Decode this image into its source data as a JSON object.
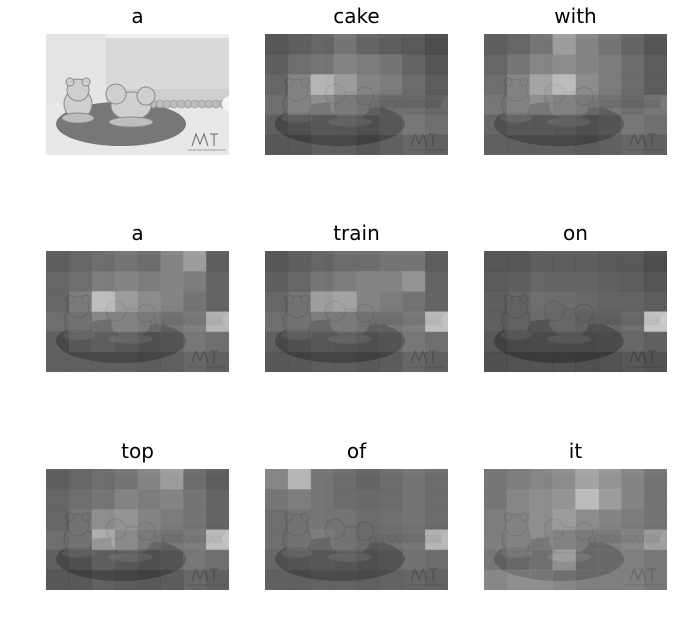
{
  "figure": {
    "panels": [
      {
        "word": "a",
        "kind": "original"
      },
      {
        "word": "cake",
        "kind": "attention"
      },
      {
        "word": "with",
        "kind": "attention"
      },
      {
        "word": "a",
        "kind": "attention"
      },
      {
        "word": "train",
        "kind": "attention"
      },
      {
        "word": "on",
        "kind": "attention"
      },
      {
        "word": "top",
        "kind": "attention"
      },
      {
        "word": "of",
        "kind": "attention"
      },
      {
        "word": "it",
        "kind": "attention"
      }
    ],
    "attention_grids": [
      null,
      [
        [
          0.25,
          0.3,
          0.35,
          0.45,
          0.35,
          0.3,
          0.28,
          0.2
        ],
        [
          0.3,
          0.4,
          0.45,
          0.55,
          0.5,
          0.45,
          0.35,
          0.25
        ],
        [
          0.35,
          0.55,
          0.85,
          0.7,
          0.55,
          0.5,
          0.4,
          0.3
        ],
        [
          0.4,
          0.55,
          0.6,
          0.5,
          0.45,
          0.4,
          0.4,
          0.35
        ],
        [
          0.3,
          0.35,
          0.4,
          0.38,
          0.35,
          0.4,
          0.45,
          0.4
        ],
        [
          0.25,
          0.25,
          0.3,
          0.3,
          0.25,
          0.3,
          0.35,
          0.3
        ]
      ],
      [
        [
          0.3,
          0.35,
          0.45,
          0.7,
          0.55,
          0.45,
          0.35,
          0.25
        ],
        [
          0.35,
          0.45,
          0.55,
          0.6,
          0.55,
          0.5,
          0.4,
          0.3
        ],
        [
          0.4,
          0.55,
          0.75,
          0.9,
          0.6,
          0.5,
          0.4,
          0.3
        ],
        [
          0.45,
          0.55,
          0.6,
          0.55,
          0.5,
          0.45,
          0.4,
          0.45
        ],
        [
          0.35,
          0.4,
          0.4,
          0.38,
          0.35,
          0.38,
          0.45,
          0.4
        ],
        [
          0.3,
          0.3,
          0.3,
          0.3,
          0.28,
          0.3,
          0.35,
          0.3
        ]
      ],
      [
        [
          0.3,
          0.35,
          0.4,
          0.45,
          0.4,
          0.55,
          0.7,
          0.3
        ],
        [
          0.35,
          0.4,
          0.5,
          0.55,
          0.5,
          0.55,
          0.5,
          0.35
        ],
        [
          0.35,
          0.5,
          0.9,
          0.7,
          0.6,
          0.55,
          0.45,
          0.35
        ],
        [
          0.4,
          0.45,
          0.55,
          0.55,
          0.5,
          0.45,
          0.5,
          0.85
        ],
        [
          0.3,
          0.4,
          0.45,
          0.4,
          0.35,
          0.38,
          0.45,
          0.4
        ],
        [
          0.3,
          0.3,
          0.3,
          0.3,
          0.28,
          0.3,
          0.35,
          0.3
        ]
      ],
      [
        [
          0.25,
          0.3,
          0.35,
          0.4,
          0.4,
          0.45,
          0.45,
          0.3
        ],
        [
          0.3,
          0.35,
          0.45,
          0.5,
          0.55,
          0.55,
          0.65,
          0.35
        ],
        [
          0.35,
          0.45,
          0.7,
          0.75,
          0.55,
          0.5,
          0.45,
          0.35
        ],
        [
          0.4,
          0.45,
          0.5,
          0.5,
          0.45,
          0.45,
          0.5,
          0.9
        ],
        [
          0.3,
          0.35,
          0.4,
          0.38,
          0.35,
          0.38,
          0.45,
          0.4
        ],
        [
          0.25,
          0.25,
          0.28,
          0.28,
          0.25,
          0.28,
          0.35,
          0.3
        ]
      ],
      [
        [
          0.25,
          0.25,
          0.3,
          0.3,
          0.3,
          0.28,
          0.28,
          0.2
        ],
        [
          0.28,
          0.3,
          0.35,
          0.35,
          0.35,
          0.32,
          0.3,
          0.25
        ],
        [
          0.3,
          0.35,
          0.4,
          0.4,
          0.38,
          0.35,
          0.35,
          0.3
        ],
        [
          0.3,
          0.35,
          0.38,
          0.38,
          0.35,
          0.35,
          0.4,
          0.95
        ],
        [
          0.25,
          0.3,
          0.32,
          0.3,
          0.3,
          0.32,
          0.35,
          0.3
        ],
        [
          0.2,
          0.22,
          0.22,
          0.22,
          0.2,
          0.22,
          0.25,
          0.22
        ]
      ],
      [
        [
          0.3,
          0.35,
          0.4,
          0.45,
          0.55,
          0.7,
          0.4,
          0.3
        ],
        [
          0.35,
          0.4,
          0.45,
          0.55,
          0.5,
          0.55,
          0.45,
          0.35
        ],
        [
          0.35,
          0.45,
          0.6,
          0.65,
          0.55,
          0.5,
          0.45,
          0.35
        ],
        [
          0.4,
          0.45,
          0.8,
          0.6,
          0.5,
          0.45,
          0.5,
          0.9
        ],
        [
          0.3,
          0.35,
          0.45,
          0.4,
          0.35,
          0.38,
          0.45,
          0.4
        ],
        [
          0.25,
          0.25,
          0.3,
          0.28,
          0.25,
          0.28,
          0.35,
          0.3
        ]
      ],
      [
        [
          0.55,
          0.85,
          0.45,
          0.4,
          0.35,
          0.4,
          0.45,
          0.4
        ],
        [
          0.45,
          0.5,
          0.45,
          0.4,
          0.38,
          0.4,
          0.45,
          0.4
        ],
        [
          0.4,
          0.45,
          0.45,
          0.45,
          0.4,
          0.42,
          0.45,
          0.4
        ],
        [
          0.4,
          0.45,
          0.5,
          0.45,
          0.4,
          0.42,
          0.45,
          0.85
        ],
        [
          0.35,
          0.38,
          0.4,
          0.38,
          0.35,
          0.38,
          0.42,
          0.38
        ],
        [
          0.3,
          0.3,
          0.32,
          0.32,
          0.3,
          0.32,
          0.35,
          0.32
        ]
      ],
      [
        [
          0.45,
          0.5,
          0.55,
          0.6,
          0.75,
          0.65,
          0.55,
          0.45
        ],
        [
          0.45,
          0.55,
          0.6,
          0.65,
          0.9,
          0.7,
          0.55,
          0.45
        ],
        [
          0.5,
          0.55,
          0.6,
          0.7,
          0.6,
          0.55,
          0.5,
          0.45
        ],
        [
          0.5,
          0.55,
          0.6,
          0.55,
          0.5,
          0.5,
          0.55,
          0.7
        ],
        [
          0.45,
          0.5,
          0.55,
          0.75,
          0.5,
          0.5,
          0.5,
          0.45
        ],
        [
          0.55,
          0.6,
          0.6,
          0.55,
          0.5,
          0.5,
          0.5,
          0.45
        ]
      ]
    ]
  }
}
